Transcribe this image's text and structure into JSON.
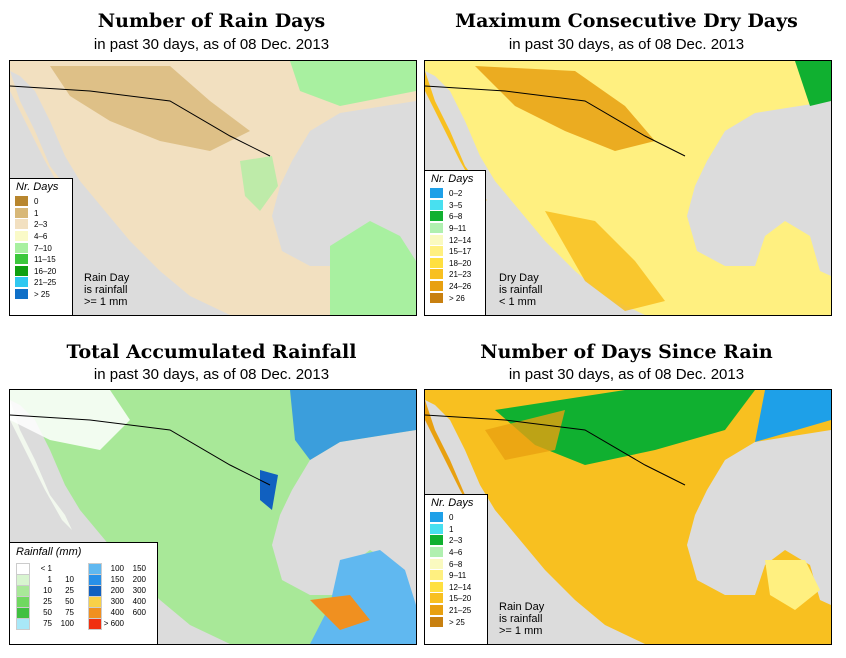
{
  "panels": [
    {
      "title": "Number of Rain Days",
      "subtitle": "in past 30 days, as of  08 Dec. 2013",
      "legend_title": "Nr. Days",
      "legend": [
        {
          "label": "0",
          "color": "#b8862e"
        },
        {
          "label": "1",
          "color": "#d8b878"
        },
        {
          "label": "2–3",
          "color": "#f2e0c0"
        },
        {
          "label": "4–6",
          "color": "#fafac8"
        },
        {
          "label": "7–10",
          "color": "#a8f0a0"
        },
        {
          "label": "11–15",
          "color": "#3cc83c"
        },
        {
          "label": "16–20",
          "color": "#10a010"
        },
        {
          "label": "21–25",
          "color": "#30c8f0"
        },
        {
          "label": "> 25",
          "color": "#1070c8"
        }
      ],
      "note": [
        "Rain Day",
        "is rainfall",
        ">= 1 mm"
      ]
    },
    {
      "title": "Maximum Consecutive Dry Days",
      "subtitle": "in past 30 days, as of  08 Dec. 2013",
      "legend_title": "Nr. Days",
      "legend": [
        {
          "label": "0–2",
          "color": "#1ea0e8"
        },
        {
          "label": "3–5",
          "color": "#48e0f0"
        },
        {
          "label": "6–8",
          "color": "#10b030"
        },
        {
          "label": "9–11",
          "color": "#b0f0b0"
        },
        {
          "label": "12–14",
          "color": "#fafac0"
        },
        {
          "label": "15–17",
          "color": "#fff080"
        },
        {
          "label": "18–20",
          "color": "#ffe040"
        },
        {
          "label": "21–23",
          "color": "#f8c020"
        },
        {
          "label": "24–26",
          "color": "#e8a010"
        },
        {
          "label": "> 26",
          "color": "#c88010"
        }
      ],
      "note": [
        "Dry Day",
        "is rainfall",
        "< 1 mm"
      ]
    },
    {
      "title": "Total Accumulated Rainfall",
      "subtitle": "in past 30 days, as of  08 Dec. 2013",
      "legend_title": "Rainfall (mm)",
      "legend_left": [
        {
          "lo": "< 1",
          "hi": "",
          "color": "#ffffff"
        },
        {
          "lo": "1",
          "hi": "10",
          "color": "#d8f5d0"
        },
        {
          "lo": "10",
          "hi": "25",
          "color": "#a8e898"
        },
        {
          "lo": "25",
          "hi": "50",
          "color": "#70d860"
        },
        {
          "lo": "50",
          "hi": "75",
          "color": "#40c040"
        },
        {
          "lo": "75",
          "hi": "100",
          "color": "#a8e8f8"
        }
      ],
      "legend_right": [
        {
          "lo": "100",
          "hi": "150",
          "color": "#60b8f0"
        },
        {
          "lo": "150",
          "hi": "200",
          "color": "#2890e8"
        },
        {
          "lo": "200",
          "hi": "300",
          "color": "#1060c0"
        },
        {
          "lo": "300",
          "hi": "400",
          "color": "#f8d048"
        },
        {
          "lo": "400",
          "hi": "600",
          "color": "#f09020"
        },
        {
          "lo": "> 600",
          "hi": "",
          "color": "#f03010"
        }
      ]
    },
    {
      "title": "Number of Days Since Rain",
      "subtitle": "in past 30 days, as of  08 Dec. 2013",
      "legend_title": "Nr. Days",
      "legend": [
        {
          "label": "0",
          "color": "#1ea0e8"
        },
        {
          "label": "1",
          "color": "#48e0f0"
        },
        {
          "label": "2–3",
          "color": "#10b030"
        },
        {
          "label": "4–6",
          "color": "#b0f0b0"
        },
        {
          "label": "6–8",
          "color": "#fafac0"
        },
        {
          "label": "9–11",
          "color": "#fff080"
        },
        {
          "label": "12–14",
          "color": "#ffe040"
        },
        {
          "label": "15–20",
          "color": "#f8c020"
        },
        {
          "label": "21–25",
          "color": "#e8a010"
        },
        {
          "label": "> 25",
          "color": "#c88010"
        }
      ],
      "note": [
        "Rain Day",
        "is rainfall",
        ">= 1 mm"
      ]
    }
  ]
}
